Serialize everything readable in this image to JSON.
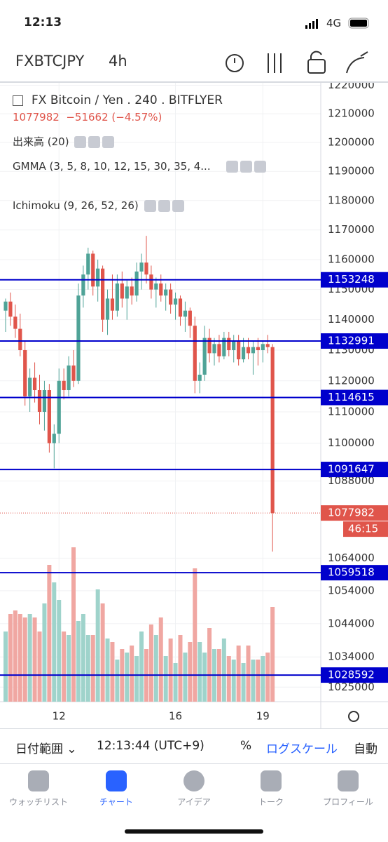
{
  "status_bar": {
    "time": "12:13",
    "network": "4G"
  },
  "header": {
    "symbol": "FXBTCJPY",
    "interval": "4h"
  },
  "legend": {
    "name": "FX Bitcoin / Yen",
    "interval": "240",
    "exchange": "BITFLYER",
    "change": "−51662 (−4.57%)",
    "indicators": [
      "出来高 (20)",
      "GMMA (3, 5, 8, 10, 12, 15, 30, 35, 4...",
      "Ichimoku (9, 26, 52, 26)"
    ]
  },
  "chart_data": {
    "type": "candlestick",
    "categories": [
      null,
      null,
      null,
      null,
      null,
      null,
      null,
      null,
      null,
      null,
      null,
      "12",
      null,
      null,
      null,
      null,
      null,
      null,
      null,
      null,
      null,
      null,
      null,
      null,
      null,
      null,
      null,
      null,
      null,
      null,
      null,
      null,
      null,
      null,
      null,
      "16",
      null,
      null,
      null,
      null,
      null,
      null,
      null,
      null,
      null,
      null,
      null,
      null,
      null,
      null,
      null,
      null,
      null,
      "19",
      null,
      null
    ],
    "open": [
      1143000,
      1146000,
      1141000,
      1137000,
      1130000,
      1115000,
      1121000,
      1117000,
      1110000,
      1117000,
      1100000,
      1103000,
      1120000,
      1117000,
      1125000,
      1120000,
      1148000,
      1155000,
      1162000,
      1151000,
      1157000,
      1140000,
      1147000,
      1143000,
      1152000,
      1147000,
      1151000,
      1148000,
      1156000,
      1159000,
      1155000,
      1150000,
      1152000,
      1148000,
      1150000,
      1145000,
      1147000,
      1141000,
      1143000,
      1138000,
      1120000,
      1122000,
      1134000,
      1129000,
      1132000,
      1128000,
      1134000,
      1130000,
      1133000,
      1127000,
      1131000,
      1129000,
      1131000,
      1130000,
      1132000,
      1131000
    ],
    "high": [
      1147000,
      1149000,
      1145000,
      1142000,
      1133000,
      1124000,
      1126000,
      1122000,
      1120000,
      1119000,
      1106000,
      1124000,
      1124000,
      1128000,
      1130000,
      1152000,
      1158000,
      1164000,
      1163000,
      1160000,
      1158000,
      1150000,
      1155000,
      1155000,
      1156000,
      1153000,
      1154000,
      1159000,
      1162000,
      1168000,
      1158000,
      1154000,
      1155000,
      1152000,
      1152000,
      1149000,
      1148000,
      1146000,
      1144000,
      1141000,
      1126000,
      1138000,
      1137000,
      1134000,
      1135000,
      1136000,
      1136000,
      1135000,
      1135000,
      1134000,
      1134000,
      1133000,
      1134000,
      1133000,
      1135000,
      1132000
    ],
    "low": [
      1136000,
      1138000,
      1134000,
      1128000,
      1112000,
      1110000,
      1113000,
      1106000,
      1104000,
      1097000,
      1092000,
      1100000,
      1114000,
      1115000,
      1118000,
      1119000,
      1144000,
      1150000,
      1148000,
      1146000,
      1136000,
      1135000,
      1140000,
      1141000,
      1144000,
      1140000,
      1145000,
      1146000,
      1150000,
      1152000,
      1147000,
      1144000,
      1146000,
      1143000,
      1142000,
      1140000,
      1138000,
      1136000,
      1134000,
      1116000,
      1116000,
      1120000,
      1126000,
      1125000,
      1126000,
      1127000,
      1128000,
      1126000,
      1125000,
      1126000,
      1127000,
      1122000,
      1125000,
      1126000,
      1129000,
      1066000
    ],
    "close": [
      1146000,
      1141000,
      1137000,
      1130000,
      1115000,
      1121000,
      1117000,
      1110000,
      1117000,
      1100000,
      1103000,
      1120000,
      1117000,
      1125000,
      1120000,
      1148000,
      1155000,
      1162000,
      1151000,
      1157000,
      1140000,
      1147000,
      1143000,
      1152000,
      1147000,
      1151000,
      1148000,
      1156000,
      1159000,
      1155000,
      1150000,
      1152000,
      1148000,
      1150000,
      1145000,
      1147000,
      1141000,
      1143000,
      1138000,
      1120000,
      1122000,
      1134000,
      1129000,
      1132000,
      1128000,
      1134000,
      1130000,
      1133000,
      1127000,
      1131000,
      1129000,
      1131000,
      1130000,
      1132000,
      1131000,
      1077982
    ],
    "volume": [
      100,
      125,
      130,
      125,
      120,
      125,
      120,
      100,
      140,
      195,
      170,
      145,
      100,
      95,
      220,
      115,
      125,
      95,
      95,
      160,
      140,
      90,
      85,
      60,
      75,
      70,
      80,
      65,
      100,
      75,
      110,
      95,
      120,
      65,
      90,
      55,
      95,
      70,
      85,
      190,
      85,
      70,
      105,
      75,
      75,
      90,
      65,
      60,
      80,
      55,
      80,
      60,
      60,
      65,
      70,
      135
    ],
    "vlim": [
      0,
      250
    ],
    "up_color": "#4fa397",
    "down_color": "#e0554b",
    "volume_up_color": "#9fd3cb",
    "volume_down_color": "#f0a7a2",
    "ylim": [
      1020700,
      1220900
    ],
    "log_scale": true,
    "grid": true,
    "yticks": [
      1220000,
      1210000,
      1200000,
      1190000,
      1180000,
      1170000,
      1160000,
      1150000,
      1140000,
      1130000,
      1120000,
      1110000,
      1100000,
      1088000,
      1064000,
      1054000,
      1044000,
      1034000,
      1025000
    ],
    "levels": [
      1153248,
      1132991,
      1114615,
      1091647,
      1059518,
      1028592
    ],
    "level_color": "#0000cc",
    "last_price": 1077982,
    "countdown": "46:15"
  },
  "toolbar": {
    "date_range": "日付範囲",
    "time": "12:13:44 (UTC+9)",
    "percent": "%",
    "log_scale": "ログスケール",
    "auto": "自動"
  },
  "tabs": [
    "ウォッチリスト",
    "チャート",
    "アイデア",
    "トーク",
    "プロフィール"
  ]
}
